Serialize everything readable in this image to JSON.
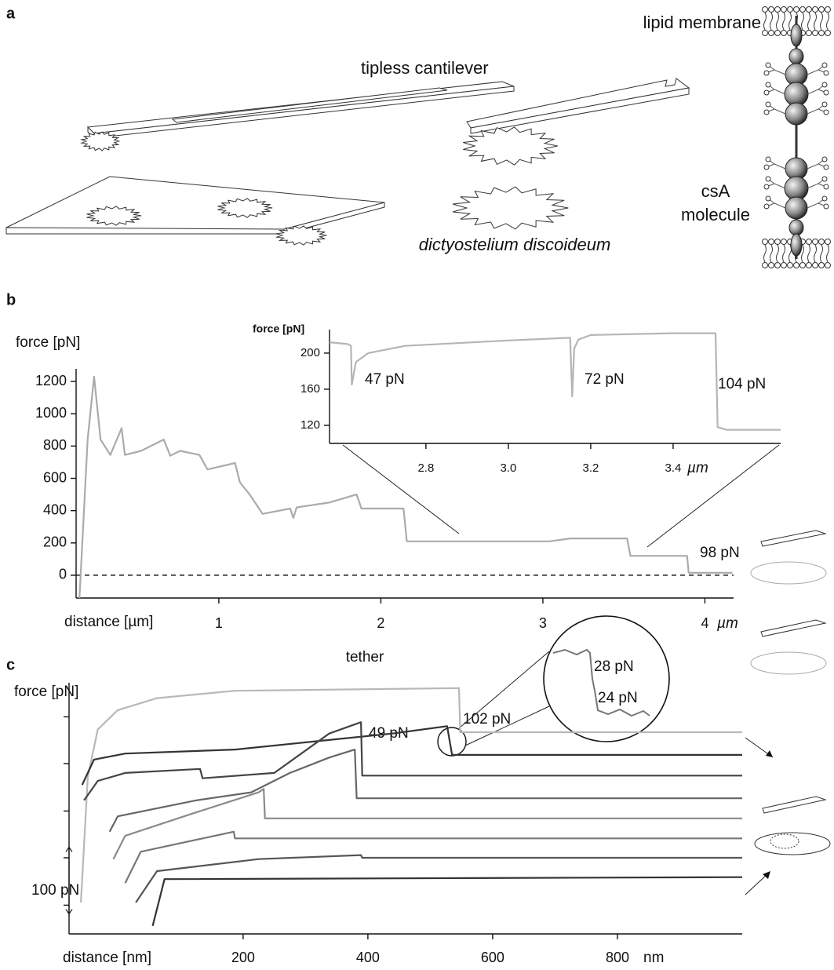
{
  "panel_labels": [
    "a",
    "b",
    "c"
  ],
  "diagram": {
    "cantilever_label": "tipless cantilever",
    "cell_label": "dictyostelium discoideum",
    "membrane_label": "lipid membrane",
    "molecule_label": [
      "csA",
      "molecule"
    ]
  },
  "chart_data": [
    {
      "type": "line",
      "ylabel": "force [pN]",
      "xlabel": "distance [µm]",
      "x_unit": "µm",
      "xlim": [
        0.119,
        4.177
      ],
      "ylim": [
        -141,
        1278
      ],
      "xticks": [
        1,
        2,
        3,
        4
      ],
      "yticks": [
        0,
        200,
        400,
        600,
        800,
        1000,
        1200
      ],
      "zero_line": true,
      "annotations": [
        "98 pN"
      ],
      "series": [
        {
          "color": "#ababab",
          "x": [
            0.14,
            0.19,
            0.23,
            0.27,
            0.33,
            0.4,
            0.42,
            0.52,
            0.66,
            0.7,
            0.76,
            0.88,
            0.93,
            1.1,
            1.13,
            1.19,
            1.27,
            1.44,
            1.46,
            1.48,
            1.68,
            1.85,
            1.88,
            2.14,
            2.16,
            3.04,
            3.17,
            3.52,
            3.54,
            3.89,
            3.9,
            4.17
          ],
          "values": [
            -141,
            840,
            1230,
            840,
            745,
            910,
            745,
            770,
            840,
            740,
            770,
            745,
            655,
            695,
            575,
            500,
            380,
            413,
            355,
            420,
            450,
            500,
            413,
            413,
            210,
            210,
            228,
            228,
            120,
            120,
            15,
            15
          ]
        }
      ]
    },
    {
      "type": "line",
      "ylabel": "force [pN]",
      "x_unit": "µm",
      "xlim": [
        2.566,
        3.661
      ],
      "ylim": [
        100,
        226
      ],
      "xticks": [
        2.8,
        {
          "value": 3,
          "label": "3.0"
        },
        3.2,
        3.4
      ],
      "yticks": [
        120,
        160,
        200
      ],
      "annotations": [
        "47 pN",
        "72 pN",
        "104 pN"
      ],
      "series": [
        {
          "color": "#b5b5b5",
          "x": [
            2.566,
            2.61,
            2.618,
            2.62,
            2.63,
            2.66,
            2.75,
            3.0,
            3.15,
            3.155,
            3.16,
            3.17,
            3.2,
            3.4,
            3.503,
            3.508,
            3.53,
            3.661
          ],
          "values": [
            212,
            210,
            208,
            165,
            190,
            200,
            208,
            214,
            217,
            152,
            205,
            215,
            220,
            222,
            222,
            118,
            115,
            115
          ]
        }
      ]
    },
    {
      "type": "line",
      "ylabel": "force [pN]",
      "xlabel": "distance [nm]",
      "x_unit": "nm",
      "xlim": [
        -79,
        1000
      ],
      "ylim": [
        0,
        376
      ],
      "xticks": [
        200,
        400,
        600,
        800
      ],
      "yticks": [
        43,
        114,
        184,
        255,
        325
      ],
      "ytick_labels": false,
      "scale_bar": 100,
      "scale_bar_label": "100 pN",
      "annotations": [
        "tether",
        "102 pN",
        "49 pN",
        "28 pN",
        "24 pN"
      ],
      "series": [
        {
          "color": "#b8b8b8",
          "x": [
            -60,
            -49,
            -33,
            -1,
            62,
            187,
            546,
            548,
            1000
          ],
          "values": [
            47,
            235,
            306,
            335,
            353,
            364,
            368,
            302,
            302
          ]
        },
        {
          "color": "#333333",
          "x": [
            -58,
            -39,
            11,
            187,
            313,
            439,
            527,
            535,
            1000
          ],
          "values": [
            223,
            261,
            270,
            276,
            288,
            300,
            311,
            268,
            268
          ]
        },
        {
          "color": "#444444",
          "x": [
            -55,
            -33,
            11,
            131,
            135,
            250,
            338,
            389,
            391,
            1000
          ],
          "values": [
            200,
            229,
            241,
            247,
            233,
            241,
            300,
            317,
            237,
            237
          ]
        },
        {
          "color": "#666666",
          "x": [
            -14,
            -1,
            125,
            213,
            275,
            338,
            379,
            382,
            1000
          ],
          "values": [
            153,
            176,
            200,
            212,
            241,
            264,
            276,
            203,
            203
          ]
        },
        {
          "color": "#8a8a8a",
          "x": [
            -8,
            11,
            125,
            225,
            233,
            235,
            1000
          ],
          "values": [
            112,
            147,
            182,
            212,
            217,
            173,
            173
          ]
        },
        {
          "color": "#777777",
          "x": [
            11,
            36,
            185,
            187,
            1000
          ],
          "values": [
            76,
            123,
            153,
            143,
            143
          ]
        },
        {
          "color": "#555555",
          "x": [
            28,
            62,
            225,
            389,
            391,
            1000
          ],
          "values": [
            47,
            94,
            112,
            118,
            114,
            114
          ]
        },
        {
          "color": "#333333",
          "x": [
            55,
            74,
            1000
          ],
          "values": [
            12,
            82,
            85
          ]
        }
      ]
    }
  ]
}
